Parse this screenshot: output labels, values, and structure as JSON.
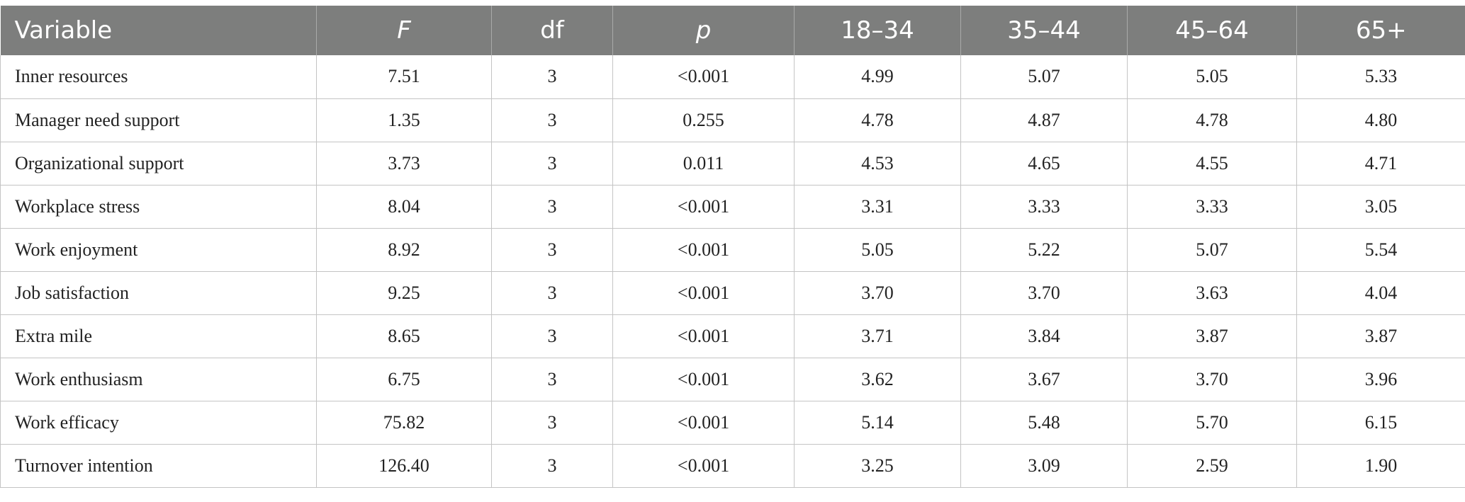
{
  "table": {
    "headers": [
      "Variable",
      "F",
      "df",
      "p",
      "18–34",
      "35–44",
      "45–64",
      "65+"
    ],
    "rows": [
      [
        "Inner resources",
        "7.51",
        "3",
        "<0.001",
        "4.99",
        "5.07",
        "5.05",
        "5.33"
      ],
      [
        "Manager need support",
        "1.35",
        "3",
        "0.255",
        "4.78",
        "4.87",
        "4.78",
        "4.80"
      ],
      [
        "Organizational support",
        "3.73",
        "3",
        "0.011",
        "4.53",
        "4.65",
        "4.55",
        "4.71"
      ],
      [
        "Workplace stress",
        "8.04",
        "3",
        "<0.001",
        "3.31",
        "3.33",
        "3.33",
        "3.05"
      ],
      [
        "Work enjoyment",
        "8.92",
        "3",
        "<0.001",
        "5.05",
        "5.22",
        "5.07",
        "5.54"
      ],
      [
        "Job satisfaction",
        "9.25",
        "3",
        "<0.001",
        "3.70",
        "3.70",
        "3.63",
        "4.04"
      ],
      [
        "Extra mile",
        "8.65",
        "3",
        "<0.001",
        "3.71",
        "3.84",
        "3.87",
        "3.87"
      ],
      [
        "Work enthusiasm",
        "6.75",
        "3",
        "<0.001",
        "3.62",
        "3.67",
        "3.70",
        "3.96"
      ],
      [
        "Work efficacy",
        "75.82",
        "3",
        "<0.001",
        "5.14",
        "5.48",
        "5.70",
        "6.15"
      ],
      [
        "Turnover intention",
        "126.40",
        "3",
        "<0.001",
        "3.25",
        "3.09",
        "2.59",
        "1.90"
      ]
    ]
  }
}
